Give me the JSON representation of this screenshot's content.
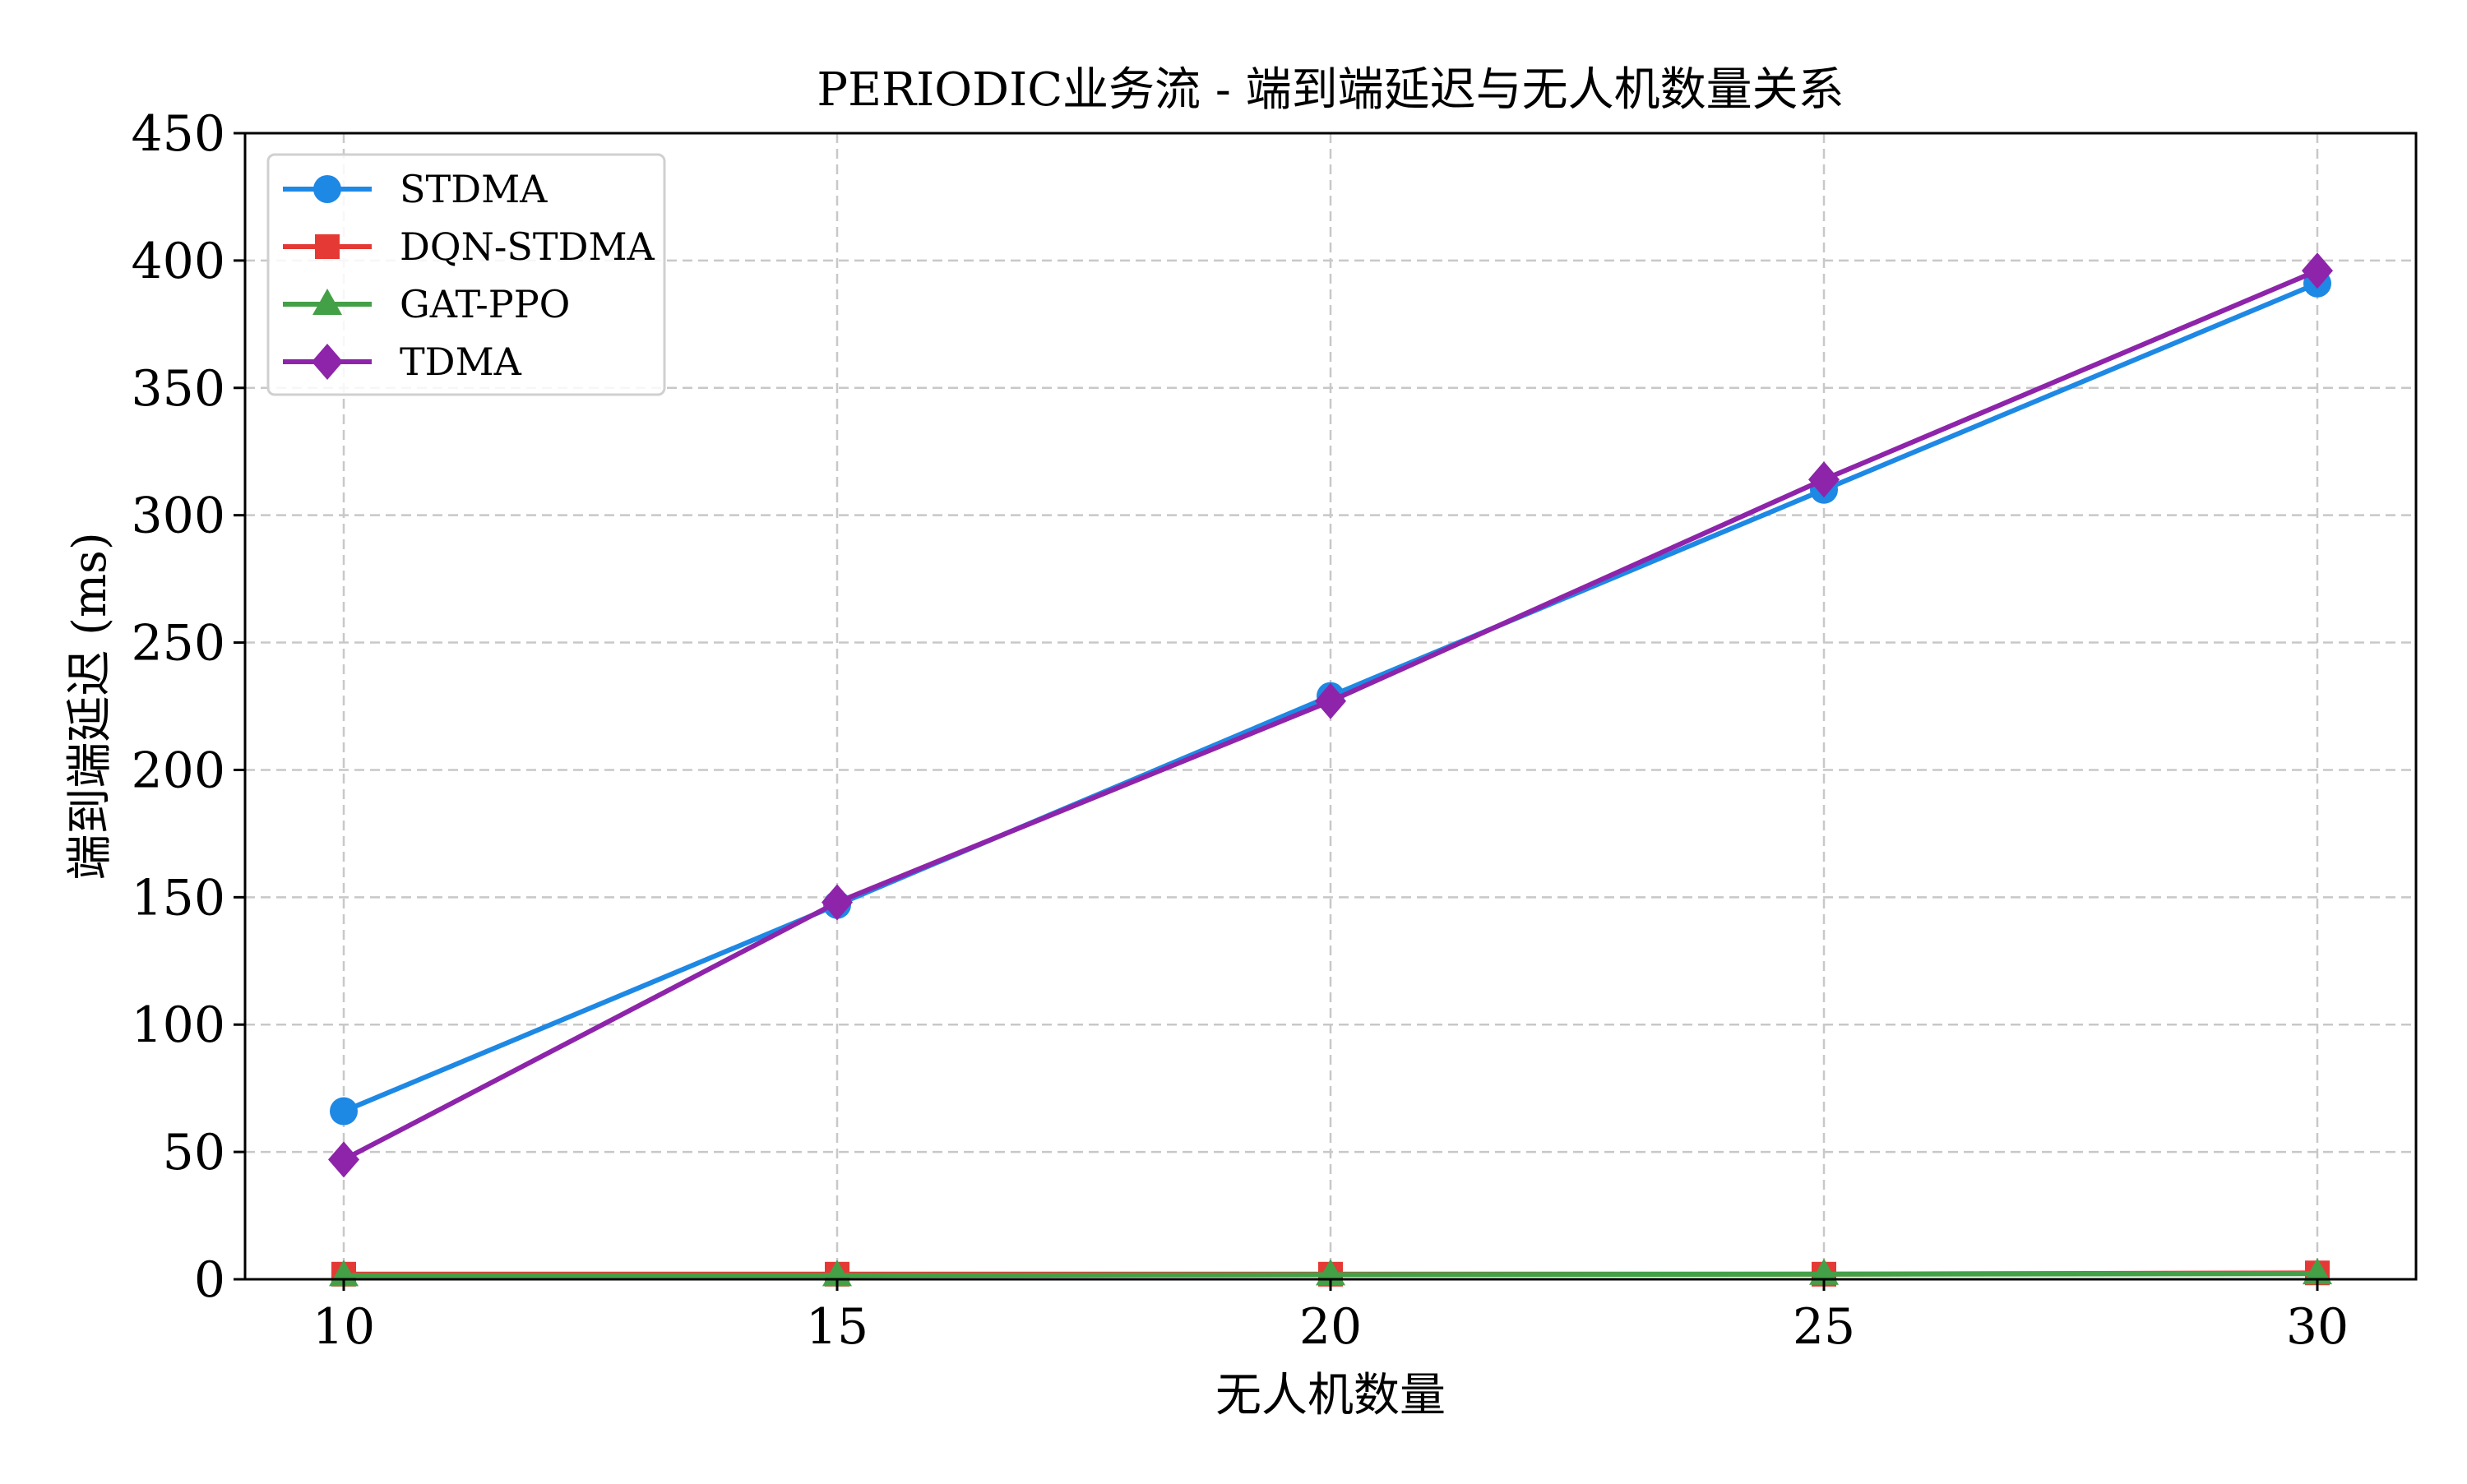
{
  "chart_data": {
    "type": "line",
    "title": "PERIODIC业务流 - 端到端延迟与无人机数量关系",
    "xlabel": "无人机数量",
    "ylabel": "端到端延迟 (ms)",
    "x": [
      10,
      15,
      20,
      25,
      30
    ],
    "xlim": [
      9,
      31
    ],
    "ylim": [
      0,
      450
    ],
    "xticks": [
      10,
      15,
      20,
      25,
      30
    ],
    "yticks": [
      0,
      50,
      100,
      150,
      200,
      250,
      300,
      350,
      400,
      450
    ],
    "grid": true,
    "legend_position": "top-left",
    "series": [
      {
        "name": "STDMA",
        "values": [
          66,
          147,
          229,
          310,
          391
        ],
        "color": "#1e88e5",
        "marker": "circle"
      },
      {
        "name": "DQN-STDMA",
        "values": [
          2,
          2,
          2,
          2,
          2.5
        ],
        "color": "#e53935",
        "marker": "square"
      },
      {
        "name": "GAT-PPO",
        "values": [
          1.5,
          1.5,
          1.8,
          2,
          2.2
        ],
        "color": "#43a047",
        "marker": "triangle"
      },
      {
        "name": "TDMA",
        "values": [
          47,
          148,
          227,
          314,
          396
        ],
        "color": "#8e24aa",
        "marker": "diamond"
      }
    ]
  }
}
